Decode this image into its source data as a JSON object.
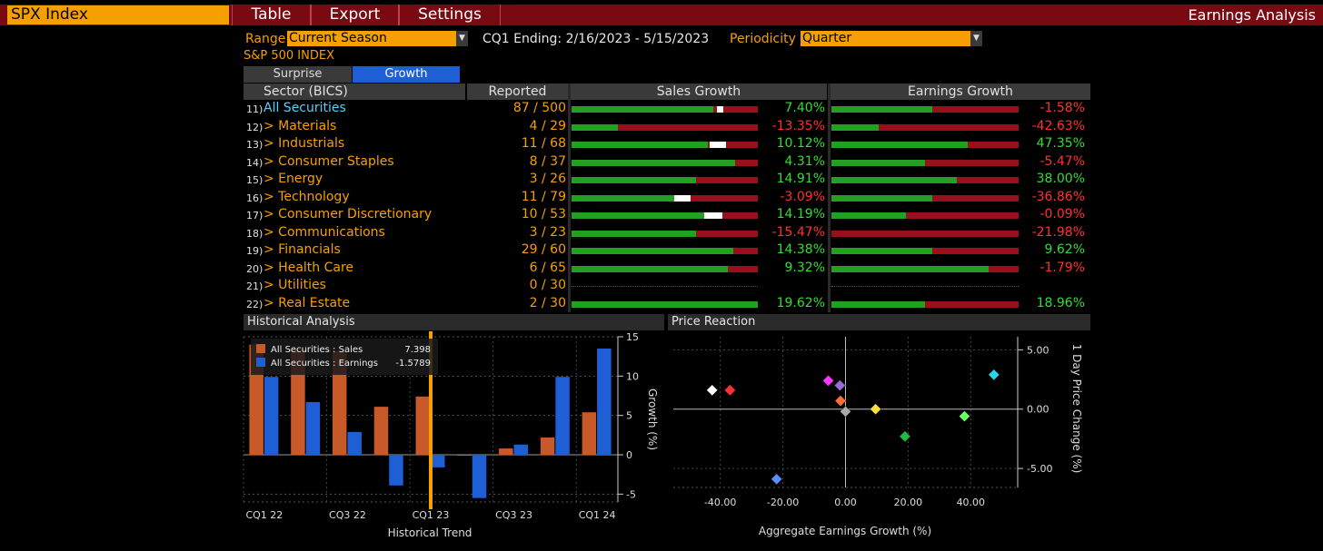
{
  "top": {
    "security": "SPX Index",
    "menus": [
      "Table",
      "Export",
      "Settings"
    ],
    "function_title": "Earnings Analysis"
  },
  "controls": {
    "range_label": "Range",
    "range_value": "Current Season",
    "period_text": "CQ1 Ending: 2/16/2023 - 5/15/2023",
    "periodicity_label": "Periodicity",
    "periodicity_value": "Quarter",
    "index_name": "S&P 500 INDEX"
  },
  "tabs": [
    "Surprise",
    "Growth"
  ],
  "table": {
    "headers": {
      "sector": "Sector (BICS)",
      "reported": "Reported",
      "sales": "Sales Growth",
      "earnings": "Earnings Growth"
    },
    "rows": [
      {
        "num": "11)",
        "name": "All Securities",
        "reported": "87 / 500",
        "sales": "7.40%",
        "sales_fill": 0.76,
        "sales_marker": 0.78,
        "earn": "-1.58%",
        "earn_fill": 0.54,
        "earn_marker": null
      },
      {
        "num": "12)",
        "name": "> Materials",
        "reported": " 4 / 29",
        "sales": "-13.35%",
        "sales_fill": 0.25,
        "sales_marker": null,
        "earn": "-42.63%",
        "earn_fill": 0.25,
        "earn_marker": null
      },
      {
        "num": "13)",
        "name": "> Industrials",
        "reported": "11 / 68",
        "sales": "10.12%",
        "sales_fill": 0.73,
        "sales_marker": 0.74,
        "earn": "47.35%",
        "earn_fill": 0.73,
        "earn_marker": null
      },
      {
        "num": "14)",
        "name": "> Consumer Staples",
        "reported": " 8 / 37",
        "sales": "4.31%",
        "sales_fill": 0.88,
        "sales_marker": null,
        "earn": "-5.47%",
        "earn_fill": 0.5,
        "earn_marker": null
      },
      {
        "num": "15)",
        "name": "> Energy",
        "reported": " 3 / 26",
        "sales": "14.91%",
        "sales_fill": 0.67,
        "sales_marker": null,
        "earn": "38.00%",
        "earn_fill": 0.67,
        "earn_marker": null
      },
      {
        "num": "16)",
        "name": "> Technology",
        "reported": "11 / 79",
        "sales": "-3.09%",
        "sales_fill": 0.55,
        "sales_marker": 0.55,
        "earn": "-36.86%",
        "earn_fill": 0.54,
        "earn_marker": null
      },
      {
        "num": "17)",
        "name": "> Consumer Discretionary",
        "reported": "10 / 53",
        "sales": "14.19%",
        "sales_fill": 0.71,
        "sales_marker": 0.71,
        "earn": "-0.09%",
        "earn_fill": 0.4,
        "earn_marker": null
      },
      {
        "num": "18)",
        "name": "> Communications",
        "reported": " 3 / 23",
        "sales": "-15.47%",
        "sales_fill": 0.67,
        "sales_marker": null,
        "earn": "-21.98%",
        "earn_fill": 0.0,
        "earn_marker": null
      },
      {
        "num": "19)",
        "name": "> Financials",
        "reported": "29 / 60",
        "sales": "14.38%",
        "sales_fill": 0.87,
        "sales_marker": null,
        "earn": "9.62%",
        "earn_fill": 0.54,
        "earn_marker": null
      },
      {
        "num": "20)",
        "name": "> Health Care",
        "reported": " 6 / 65",
        "sales": "9.32%",
        "sales_fill": 0.84,
        "sales_marker": null,
        "earn": "-1.79%",
        "earn_fill": 0.84,
        "earn_marker": null
      },
      {
        "num": "21)",
        "name": "> Utilities",
        "reported": " 0 / 30",
        "sales": "",
        "sales_fill": null,
        "sales_marker": null,
        "earn": "",
        "earn_fill": null,
        "earn_marker": null
      },
      {
        "num": "22)",
        "name": "> Real Estate",
        "reported": " 2 / 30",
        "sales": "19.62%",
        "sales_fill": 1.0,
        "sales_marker": null,
        "earn": "18.96%",
        "earn_fill": 0.5,
        "earn_marker": null
      }
    ]
  },
  "historical": {
    "title": "Historical Analysis",
    "legend": [
      {
        "label": "All Securities : Sales",
        "value": "7.398",
        "color": "#c85a2a"
      },
      {
        "label": "All Securities : Earnings",
        "value": "-1.5789",
        "color": "#1f5fd6"
      }
    ],
    "xlabel": "Historical Trend",
    "ylabel": "Growth (%)"
  },
  "price_reaction": {
    "title": "Price Reaction",
    "xlabel": "Aggregate Earnings Growth (%)",
    "ylabel": "1 Day Price Change (%)"
  },
  "chart_data": [
    {
      "type": "bar",
      "categories": [
        "CQ1 22",
        "",
        "CQ3 22",
        "",
        "CQ1 23",
        "",
        "CQ3 23",
        "",
        "CQ1 24"
      ],
      "tick_labels": [
        "CQ1 22",
        "CQ3 22",
        "CQ1 23",
        "CQ3 23",
        "CQ1 24"
      ],
      "series": [
        {
          "name": "All Securities : Sales",
          "values": [
            14.0,
            13.4,
            13.2,
            6.1,
            7.4,
            -0.1,
            0.8,
            2.2,
            5.4
          ]
        },
        {
          "name": "All Securities : Earnings",
          "values": [
            9.9,
            6.7,
            2.9,
            -3.9,
            -1.6,
            -5.5,
            1.3,
            9.9,
            13.5
          ]
        }
      ],
      "ylim": [
        -6,
        15
      ],
      "yticks": [
        -5,
        0,
        5,
        10,
        15
      ],
      "highlight_category": "CQ1 23",
      "xlabel": "Historical Trend",
      "ylabel": "Growth (%)"
    },
    {
      "type": "scatter",
      "xticks": [
        "-40.00",
        "-20.00",
        "0.00",
        "20.00",
        "40.00"
      ],
      "yticks": [
        "5.00",
        "0.00",
        "-5.00"
      ],
      "xlim": [
        -55,
        55
      ],
      "ylim": [
        -6.6,
        6.1
      ],
      "points": [
        {
          "x": -42.6,
          "y": 1.6,
          "color": "#ffffff"
        },
        {
          "x": -36.9,
          "y": 1.6,
          "color": "#ff3030"
        },
        {
          "x": -22.0,
          "y": -5.9,
          "color": "#5a8cff"
        },
        {
          "x": -5.5,
          "y": 2.4,
          "color": "#ff33ff"
        },
        {
          "x": -1.8,
          "y": 2.0,
          "color": "#9a6ad6"
        },
        {
          "x": -1.6,
          "y": 0.7,
          "color": "#ff7030"
        },
        {
          "x": 0.0,
          "y": -0.2,
          "color": "#aaaaaa"
        },
        {
          "x": 9.6,
          "y": 0.0,
          "color": "#ffe040"
        },
        {
          "x": 19.0,
          "y": -2.3,
          "color": "#22bb44"
        },
        {
          "x": 38.0,
          "y": -0.6,
          "color": "#66ff66"
        },
        {
          "x": 47.4,
          "y": 2.9,
          "color": "#2ad4e8"
        }
      ],
      "xlabel": "Aggregate Earnings Growth (%)",
      "ylabel": "1 Day Price Change (%)"
    }
  ]
}
